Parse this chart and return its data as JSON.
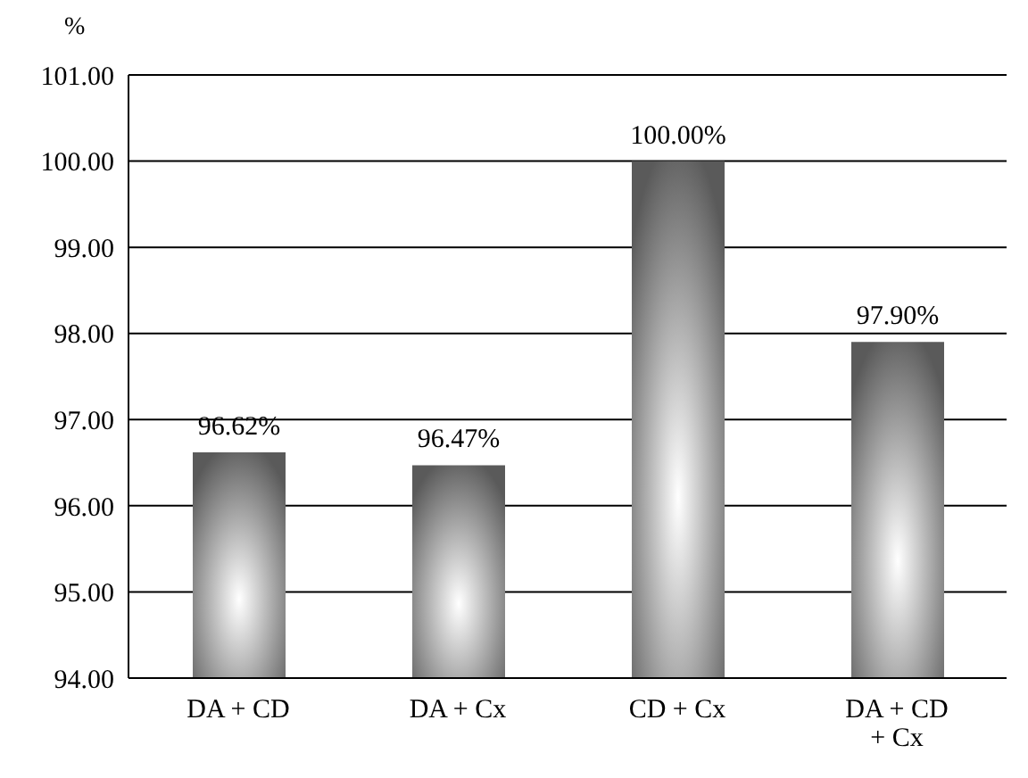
{
  "chart_data": {
    "type": "bar",
    "ylabel": "%",
    "categories": [
      "DA + CD",
      "DA + Cx",
      "CD + Cx",
      "DA + CD + Cx"
    ],
    "values": [
      96.62,
      96.47,
      100.0,
      97.9
    ],
    "value_labels": [
      "96.62%",
      "96.47%",
      "100.00%",
      "97.90%"
    ],
    "color": "#5a5a5a",
    "ylim": [
      94,
      101
    ],
    "yticks": [
      {
        "value": 94,
        "label": "94.00"
      },
      {
        "value": 95,
        "label": "95.00"
      },
      {
        "value": 96,
        "label": "96.00"
      },
      {
        "value": 97,
        "label": "97.00"
      },
      {
        "value": 98,
        "label": "98.00"
      },
      {
        "value": 99,
        "label": "99.00"
      },
      {
        "value": 100,
        "label": "100.00"
      },
      {
        "value": 101,
        "label": "101.00"
      }
    ],
    "grid": "y"
  }
}
